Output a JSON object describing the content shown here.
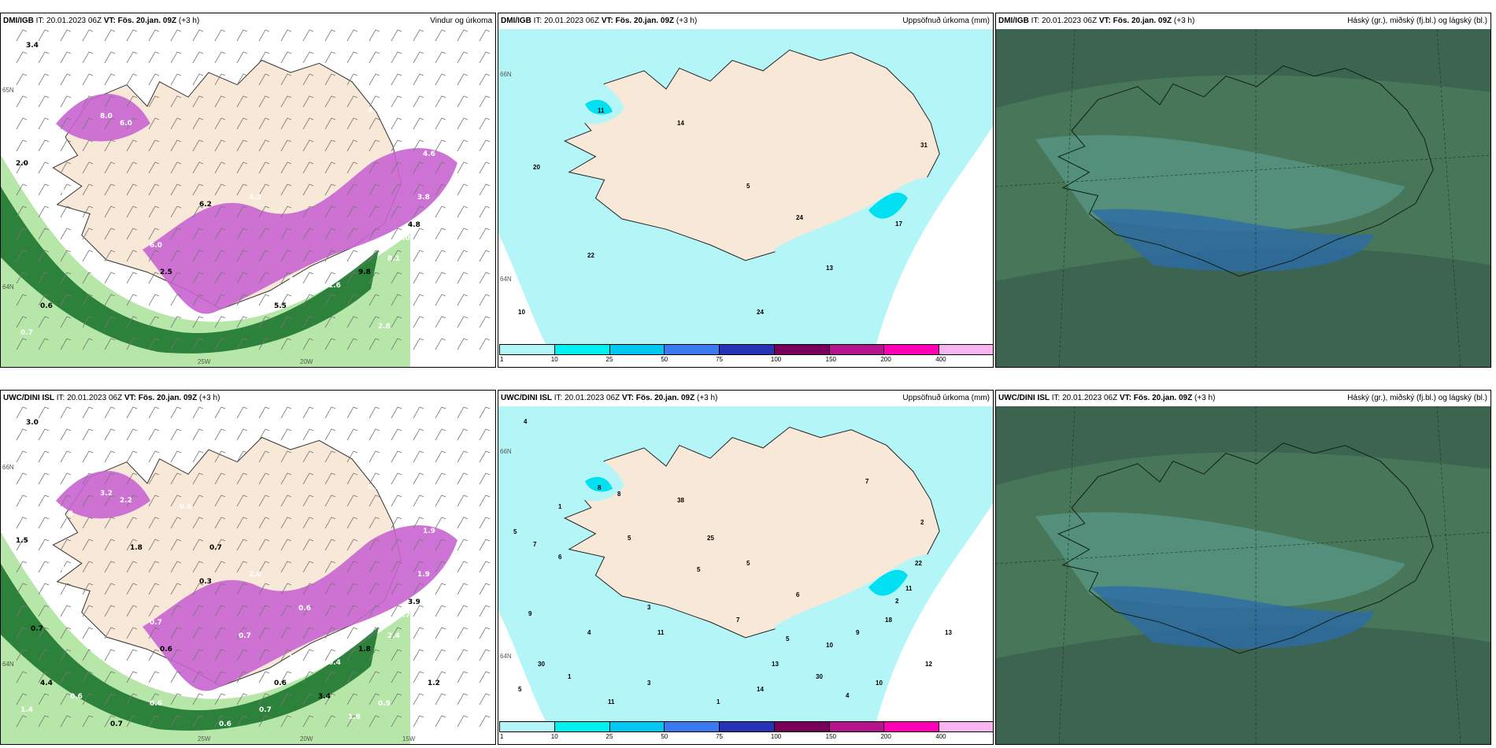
{
  "panels": [
    {
      "id": "p1",
      "source": "DMI/IGB",
      "issue_prefix": "IT:",
      "issue_time": "20.01.2023 06Z",
      "valid_prefix": "VT:",
      "valid_time": "Fös. 20.jan. 09Z",
      "lead": "(+3 h)",
      "title": "Vindur og úrkoma",
      "kind": "wind",
      "labels": [
        "3.4",
        "8.0",
        "6.0",
        "2.0",
        "1.6",
        "1.4",
        "6.2",
        "4.3",
        "6.0",
        "2.5",
        "4.6",
        "3.8",
        "4.8",
        "5.0",
        "8.1",
        "9.8",
        "1.6",
        "3.6",
        "5.5",
        "1.9",
        "3.8",
        "0.6",
        "0.7",
        "2.8"
      ],
      "axis": [
        "65N",
        "64N",
        "25W",
        "20W"
      ]
    },
    {
      "id": "p2",
      "source": "DMI/IGB",
      "issue_prefix": "IT:",
      "issue_time": "20.01.2023 06Z",
      "valid_prefix": "VT:",
      "valid_time": "Fös. 20.jan. 09Z",
      "lead": "(+3 h)",
      "title": "Uppsöfnuð úrkoma (mm)",
      "kind": "precip",
      "labels": [
        "11",
        "20",
        "5",
        "31",
        "17",
        "13",
        "22",
        "10",
        "24",
        "14",
        "24"
      ],
      "axis": [
        "66N",
        "64N"
      ]
    },
    {
      "id": "p3",
      "source": "DMI/IGB",
      "issue_prefix": "IT:",
      "issue_time": "20.01.2023 06Z",
      "valid_prefix": "VT:",
      "valid_time": "Fös. 20.jan. 09Z",
      "lead": "(+3 h)",
      "title": "Háský (gr.), miðský (fj.bl.) og lágský (bl.)",
      "kind": "cloud",
      "labels": [],
      "axis": []
    },
    {
      "id": "p4",
      "source": "UWC/DINI ISL",
      "issue_prefix": "IT:",
      "issue_time": "20.01.2023 06Z",
      "valid_prefix": "VT:",
      "valid_time": "Fös. 20.jan. 09Z",
      "lead": "(+3 h)",
      "title": "",
      "kind": "wind",
      "labels": [
        "3.0",
        "3.2",
        "2.2",
        "1.5",
        "1.6",
        "1.3",
        "0.3",
        "2.0",
        "0.7",
        "0.6",
        "1.9",
        "1.9",
        "3.9",
        "0.7",
        "2.4",
        "1.8",
        "0.4",
        "1.2",
        "0.6",
        "0.3",
        "0.2",
        "4.4",
        "1.4",
        "0.9",
        "0.7",
        "0.6",
        "1.8",
        "1.8",
        "0.6",
        "0.7",
        "3.4",
        "0.7",
        "1.6",
        "1.2",
        "0.9",
        "0.6",
        "0.7",
        "0.6",
        "0.6",
        "0.7"
      ],
      "axis": [
        "66N",
        "64N",
        "25W",
        "20W",
        "15W"
      ]
    },
    {
      "id": "p5",
      "source": "UWC/DINI ISL",
      "issue_prefix": "IT:",
      "issue_time": "20.01.2023 06Z",
      "valid_prefix": "VT:",
      "valid_time": "Fös. 20.jan. 09Z",
      "lead": "(+3 h)",
      "title": "Uppsöfnuð úrkoma (mm)",
      "kind": "precip",
      "labels": [
        "8",
        "7",
        "5",
        "2",
        "2",
        "10",
        "4",
        "5",
        "6",
        "38",
        "14",
        "13",
        "1",
        "4",
        "5",
        "5",
        "11",
        "11",
        "9",
        "13",
        "30",
        "25",
        "5",
        "30",
        "12",
        "11",
        "9",
        "8",
        "6",
        "3",
        "22",
        "18",
        "5",
        "7",
        "10",
        "1",
        "7",
        "4",
        "3",
        "1"
      ],
      "axis": [
        "66N",
        "64N"
      ]
    },
    {
      "id": "p6",
      "source": "UWC/DINI ISL",
      "issue_prefix": "IT:",
      "issue_time": "20.01.2023 06Z",
      "valid_prefix": "VT:",
      "valid_time": "Fös. 20.jan. 09Z",
      "lead": "(+3 h)",
      "title": "Háský (gr.), miðský (fj.bl.) og lágský (bl.)",
      "kind": "cloud",
      "labels": [],
      "axis": []
    }
  ],
  "colorbar": {
    "ticks": [
      "1",
      "10",
      "25",
      "50",
      "75",
      "100",
      "150",
      "200",
      "400"
    ],
    "colors": [
      "#b4f5f8",
      "#00f0f0",
      "#00c8f0",
      "#3c78f0",
      "#2832b4",
      "#78005a",
      "#b4148c",
      "#ff00b4",
      "#f8b4f0"
    ]
  },
  "colors": {
    "land": "#f8e8d8",
    "sea_precip": "#b4f5f8",
    "wind_pink": "#c864d2",
    "wind_green": "#146e28",
    "cloud_bg": "#3c6450"
  }
}
